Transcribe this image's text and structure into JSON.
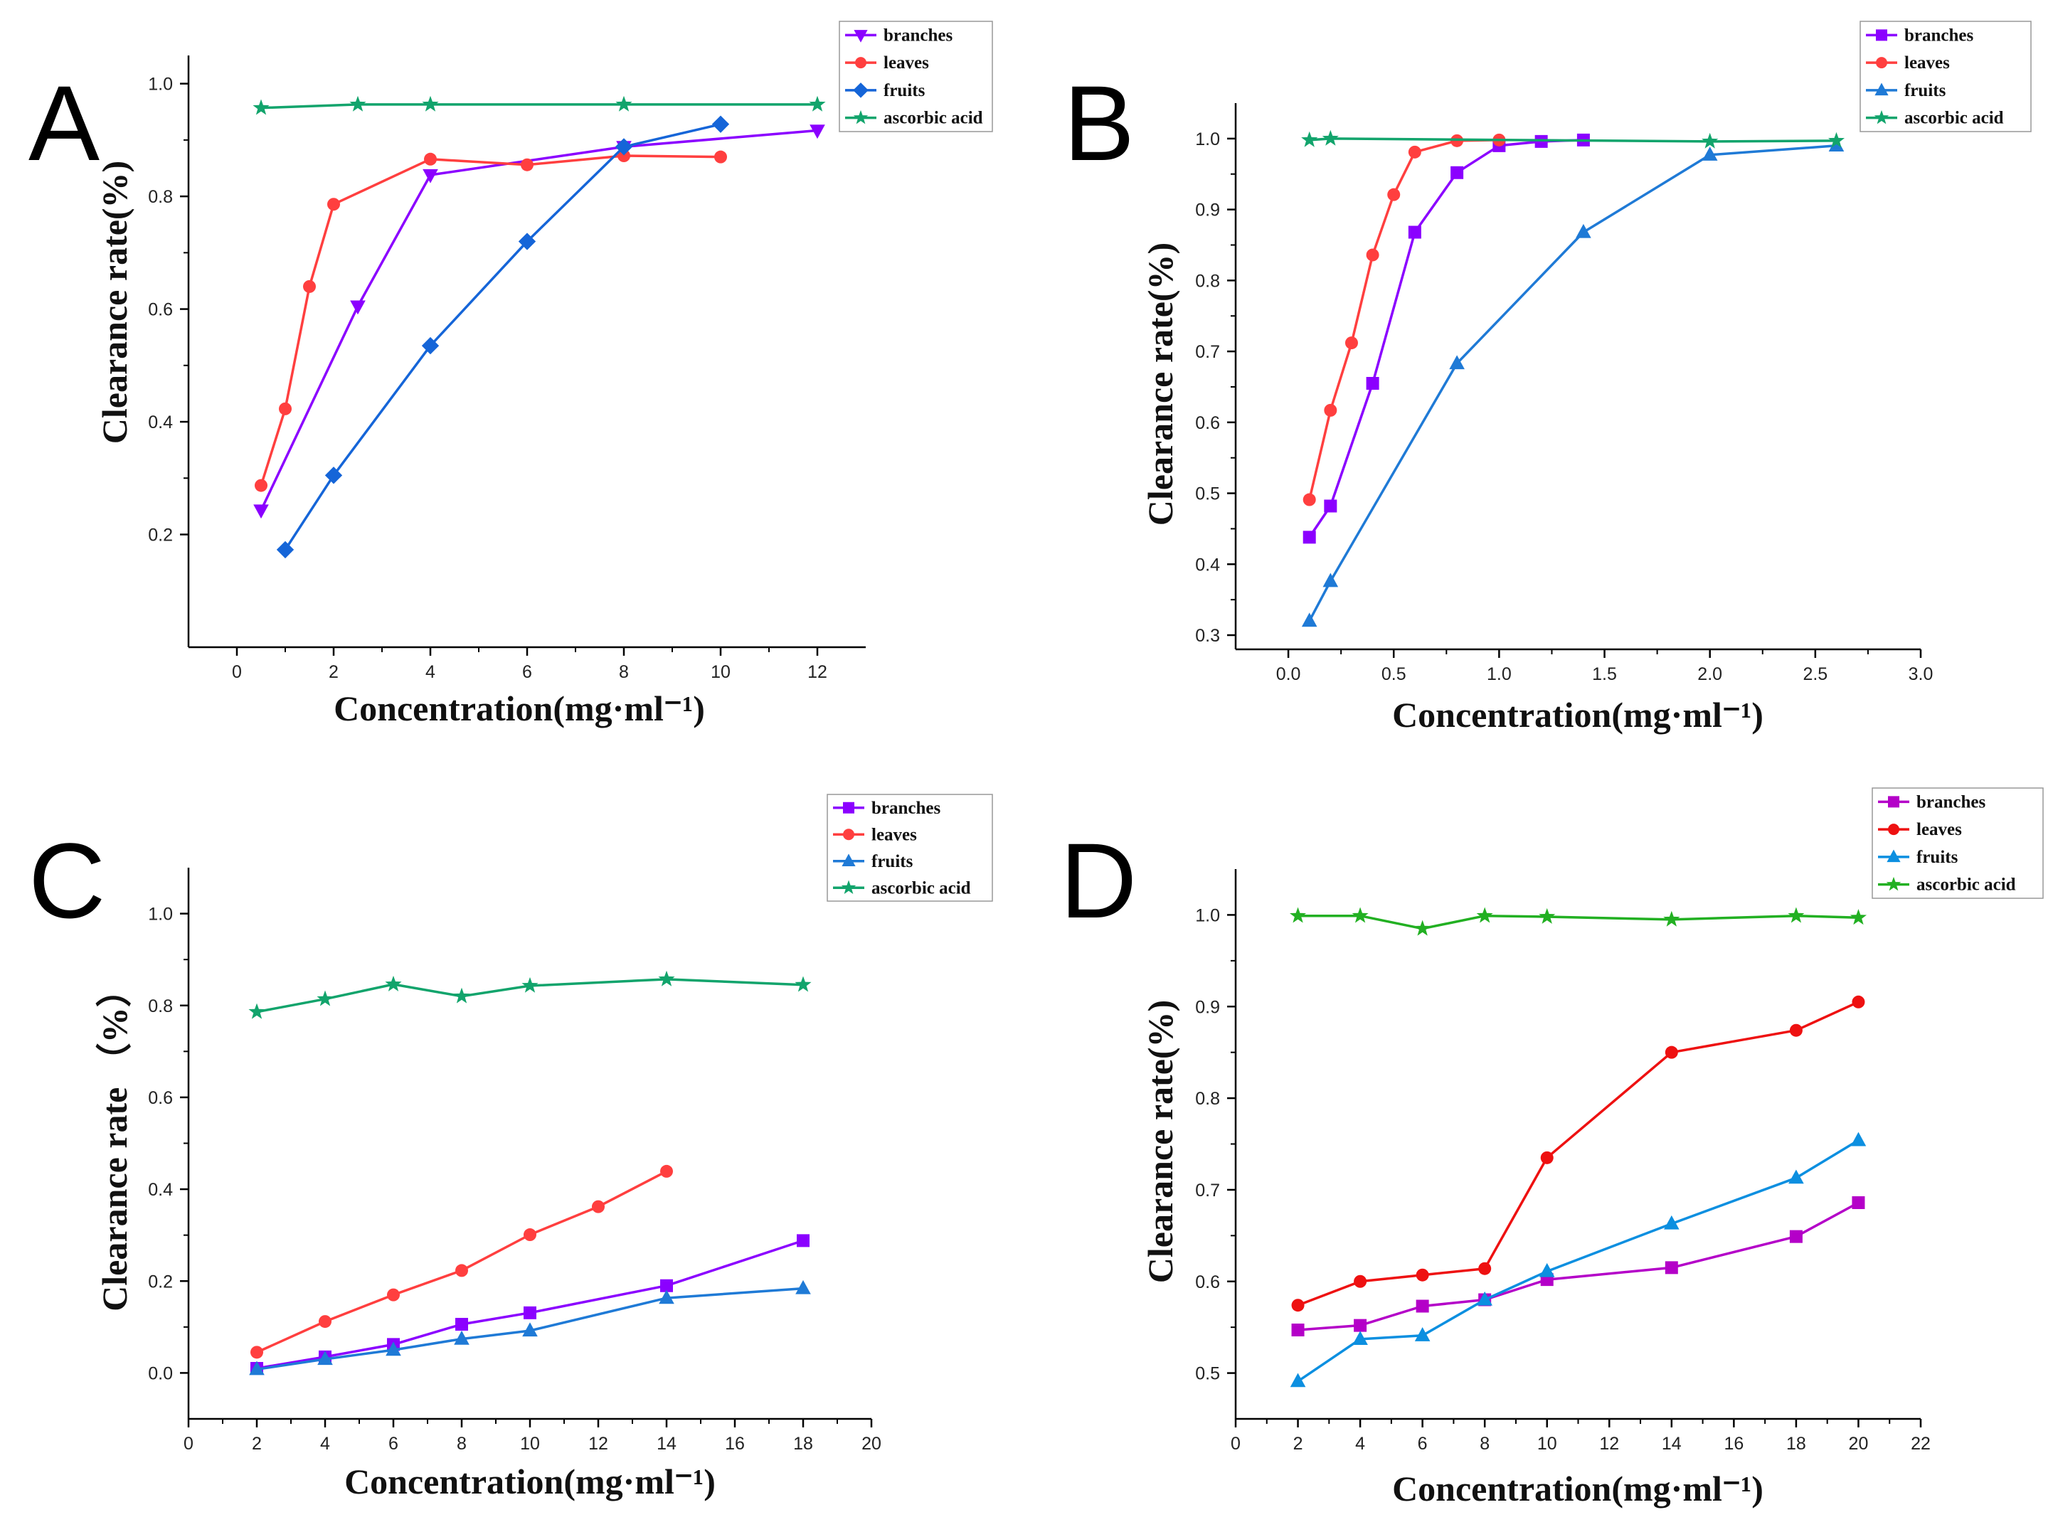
{
  "chart_data": [
    {
      "panel": "A",
      "type": "line",
      "xlabel": "Concentration(mg·ml⁻¹)",
      "ylabel": "Clearance rate(%)",
      "xlim": [
        -1,
        13
      ],
      "ylim": [
        0,
        1.05
      ],
      "xticks": [
        0,
        2,
        4,
        6,
        8,
        10,
        12
      ],
      "yticks": [
        0.2,
        0.4,
        0.6,
        0.8,
        1.0
      ],
      "xtick_labels": [
        "0",
        "2",
        "4",
        "6",
        "8",
        "10",
        "12"
      ],
      "ytick_labels": [
        "0.2",
        "0.4",
        "0.6",
        "0.8",
        "1.0"
      ],
      "legend_position": "top-right",
      "series": [
        {
          "name": "branches",
          "color": "#8b00ff",
          "marker": "triangle-down",
          "x": [
            0.5,
            2.5,
            4,
            8,
            12
          ],
          "y": [
            0.243,
            0.605,
            0.838,
            0.888,
            0.917
          ]
        },
        {
          "name": "leaves",
          "color": "#ff3f3f",
          "marker": "circle",
          "x": [
            0.5,
            1,
            1.5,
            2,
            4,
            6,
            8,
            10
          ],
          "y": [
            0.287,
            0.423,
            0.64,
            0.786,
            0.866,
            0.856,
            0.872,
            0.87
          ]
        },
        {
          "name": "fruits",
          "color": "#1565d8",
          "marker": "diamond",
          "x": [
            1,
            2,
            4,
            6,
            8,
            10
          ],
          "y": [
            0.173,
            0.305,
            0.535,
            0.72,
            0.888,
            0.928
          ]
        },
        {
          "name": "ascorbic acid",
          "color": "#12a46c",
          "marker": "star",
          "x": [
            0.5,
            2.5,
            4,
            8,
            12
          ],
          "y": [
            0.957,
            0.963,
            0.963,
            0.963,
            0.963
          ]
        }
      ]
    },
    {
      "panel": "B",
      "type": "line",
      "xlabel": "Concentration(mg·ml⁻¹)",
      "ylabel": "Clearance rate(%)",
      "xlim": [
        -0.25,
        3.0
      ],
      "ylim": [
        0.28,
        1.05
      ],
      "xticks": [
        0,
        0.5,
        1.0,
        1.5,
        2.0,
        2.5,
        3.0
      ],
      "yticks": [
        0.3,
        0.4,
        0.5,
        0.6,
        0.7,
        0.8,
        0.9,
        1.0
      ],
      "xtick_labels": [
        "0.0",
        "0.5",
        "1.0",
        "1.5",
        "2.0",
        "2.5",
        "3.0"
      ],
      "ytick_labels": [
        "0.3",
        "0.4",
        "0.5",
        "0.6",
        "0.7",
        "0.8",
        "0.9",
        "1.0"
      ],
      "legend_position": "top-right",
      "series": [
        {
          "name": "branches",
          "color": "#8b00ff",
          "marker": "square",
          "x": [
            0.1,
            0.2,
            0.4,
            0.6,
            0.8,
            1.0,
            1.2,
            1.4
          ],
          "y": [
            0.438,
            0.482,
            0.655,
            0.868,
            0.952,
            0.99,
            0.996,
            0.998
          ]
        },
        {
          "name": "leaves",
          "color": "#ff3f3f",
          "marker": "circle",
          "x": [
            0.1,
            0.2,
            0.3,
            0.4,
            0.5,
            0.6,
            0.8,
            1.0
          ],
          "y": [
            0.491,
            0.617,
            0.712,
            0.836,
            0.921,
            0.981,
            0.997,
            0.998
          ]
        },
        {
          "name": "fruits",
          "color": "#1f7ad6",
          "marker": "triangle-up",
          "x": [
            0.1,
            0.2,
            0.8,
            1.4,
            2.0,
            2.6
          ],
          "y": [
            0.32,
            0.376,
            0.683,
            0.868,
            0.977,
            0.99
          ]
        },
        {
          "name": "ascorbic acid",
          "color": "#12a46c",
          "marker": "star",
          "x": [
            0.1,
            0.2,
            2.0,
            2.6
          ],
          "y": [
            0.998,
            1.0,
            0.996,
            0.997
          ]
        }
      ]
    },
    {
      "panel": "C",
      "type": "line",
      "xlabel": "Concentration(mg·ml⁻¹)",
      "ylabel": "Clearance rate （%）",
      "xlim": [
        0,
        20
      ],
      "ylim": [
        -0.1,
        1.1
      ],
      "xticks": [
        0,
        2,
        4,
        6,
        8,
        10,
        12,
        14,
        16,
        18,
        20
      ],
      "yticks": [
        0.0,
        0.2,
        0.4,
        0.6,
        0.8,
        1.0
      ],
      "xtick_labels": [
        "0",
        "2",
        "4",
        "6",
        "8",
        "10",
        "12",
        "14",
        "16",
        "18",
        "20"
      ],
      "ytick_labels": [
        "0.0",
        "0.2",
        "0.4",
        "0.6",
        "0.8",
        "1.0"
      ],
      "legend_position": "top-right",
      "series": [
        {
          "name": "branches",
          "color": "#8b00ff",
          "marker": "square",
          "x": [
            2,
            4,
            6,
            8,
            10,
            14,
            18
          ],
          "y": [
            0.01,
            0.035,
            0.062,
            0.106,
            0.131,
            0.19,
            0.288
          ]
        },
        {
          "name": "leaves",
          "color": "#ff3f3f",
          "marker": "circle",
          "x": [
            2,
            4,
            6,
            8,
            10,
            12,
            14
          ],
          "y": [
            0.045,
            0.112,
            0.17,
            0.223,
            0.301,
            0.362,
            0.439
          ]
        },
        {
          "name": "fruits",
          "color": "#1f7ad6",
          "marker": "triangle-up",
          "x": [
            2,
            4,
            6,
            8,
            10,
            14,
            18
          ],
          "y": [
            0.008,
            0.03,
            0.05,
            0.074,
            0.092,
            0.163,
            0.184
          ]
        },
        {
          "name": "ascorbic acid",
          "color": "#12a46c",
          "marker": "star",
          "x": [
            2,
            4,
            6,
            8,
            10,
            14,
            18
          ],
          "y": [
            0.786,
            0.814,
            0.846,
            0.82,
            0.843,
            0.857,
            0.845
          ]
        }
      ]
    },
    {
      "panel": "D",
      "type": "line",
      "xlabel": "Concentration(mg·ml⁻¹)",
      "ylabel": "Clearance rate(%)",
      "xlim": [
        0,
        22
      ],
      "ylim": [
        0.45,
        1.05
      ],
      "xticks": [
        0,
        2,
        4,
        6,
        8,
        10,
        12,
        14,
        16,
        18,
        20,
        22
      ],
      "yticks": [
        0.5,
        0.6,
        0.7,
        0.8,
        0.9,
        1.0
      ],
      "xtick_labels": [
        "0",
        "2",
        "4",
        "6",
        "8",
        "10",
        "12",
        "14",
        "16",
        "18",
        "20",
        "22"
      ],
      "ytick_labels": [
        "0.5",
        "0.6",
        "0.7",
        "0.8",
        "0.9",
        "1.0"
      ],
      "legend_position": "top-right",
      "series": [
        {
          "name": "branches",
          "color": "#b400c8",
          "marker": "square",
          "x": [
            2,
            4,
            6,
            8,
            10,
            14,
            18,
            20
          ],
          "y": [
            0.547,
            0.552,
            0.573,
            0.58,
            0.602,
            0.615,
            0.649,
            0.686
          ]
        },
        {
          "name": "leaves",
          "color": "#ee1111",
          "marker": "circle",
          "x": [
            2,
            4,
            6,
            8,
            10,
            14,
            18,
            20
          ],
          "y": [
            0.574,
            0.6,
            0.607,
            0.614,
            0.735,
            0.85,
            0.874,
            0.905
          ]
        },
        {
          "name": "fruits",
          "color": "#0c8fe0",
          "marker": "triangle-up",
          "x": [
            2,
            4,
            6,
            8,
            10,
            14,
            18,
            20
          ],
          "y": [
            0.491,
            0.537,
            0.541,
            0.58,
            0.611,
            0.663,
            0.713,
            0.754
          ]
        },
        {
          "name": "ascorbic acid",
          "color": "#22b022",
          "marker": "star",
          "x": [
            2,
            4,
            6,
            8,
            10,
            14,
            18,
            20
          ],
          "y": [
            0.999,
            0.999,
            0.985,
            0.999,
            0.998,
            0.995,
            0.999,
            0.997
          ]
        }
      ]
    }
  ]
}
